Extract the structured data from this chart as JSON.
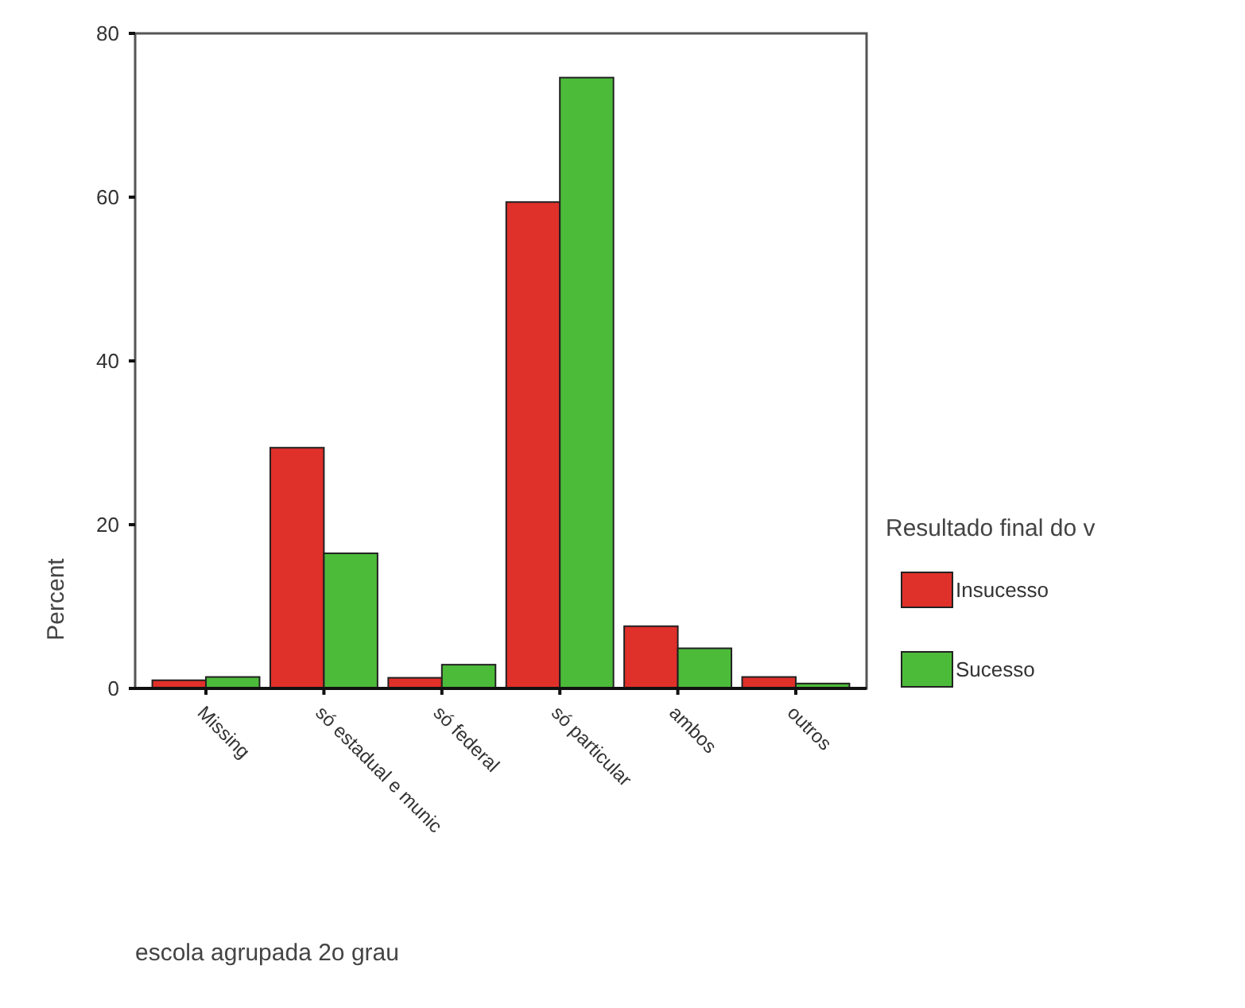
{
  "chart_data": {
    "type": "bar",
    "xlabel": "escola agrupada 2o grau",
    "ylabel": "Percent",
    "legend_title": "Resultado final do v",
    "legend": "right",
    "categories": [
      "Missing",
      "só estadual e munic",
      "só federal",
      "só particular",
      "ambos",
      "outros"
    ],
    "series": [
      {
        "name": "Insucesso",
        "color": "#e0302a",
        "values": [
          1,
          29.4,
          1.3,
          59.4,
          7.6,
          1.4
        ]
      },
      {
        "name": "Sucesso",
        "color": "#4cbb3a",
        "values": [
          1.4,
          16.5,
          2.9,
          74.6,
          4.9,
          0.6
        ]
      }
    ],
    "ylim": [
      0,
      80
    ],
    "yticks": [
      0,
      20,
      40,
      60,
      80
    ],
    "grid": false
  }
}
